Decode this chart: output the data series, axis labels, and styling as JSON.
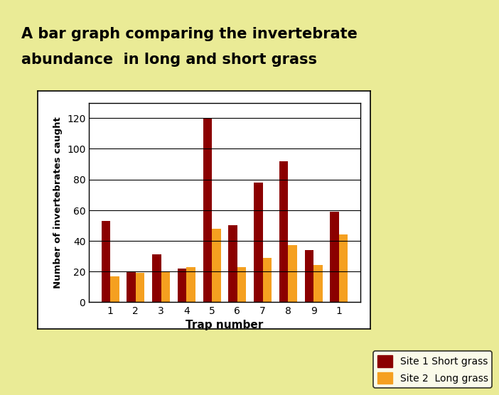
{
  "title_line1": "A bar graph comparing the invertebrate",
  "title_line2": "abundance  in long and short grass",
  "title_bg_color": "#C8001E",
  "title_text_color": "#000000",
  "page_bg_color": "#EAEB96",
  "chart_bg_color": "#FFFFFF",
  "x_labels": [
    "1",
    "2",
    "3",
    "4",
    "5",
    "6",
    "7",
    "8",
    "9",
    "1"
  ],
  "xlabel": "Trap number",
  "ylabel": "Number of invertebrates caught",
  "site1_values": [
    53,
    20,
    31,
    22,
    120,
    50,
    78,
    92,
    34,
    59
  ],
  "site2_values": [
    17,
    19,
    20,
    23,
    48,
    23,
    29,
    37,
    24,
    44
  ],
  "site1_color": "#8B0000",
  "site2_color": "#F5A020",
  "ylim": [
    0,
    130
  ],
  "yticks": [
    0,
    20,
    40,
    60,
    80,
    100,
    120
  ],
  "legend_site1": "Site 1 Short grass",
  "legend_site2": "Site 2  Long grass",
  "bar_width": 0.35
}
